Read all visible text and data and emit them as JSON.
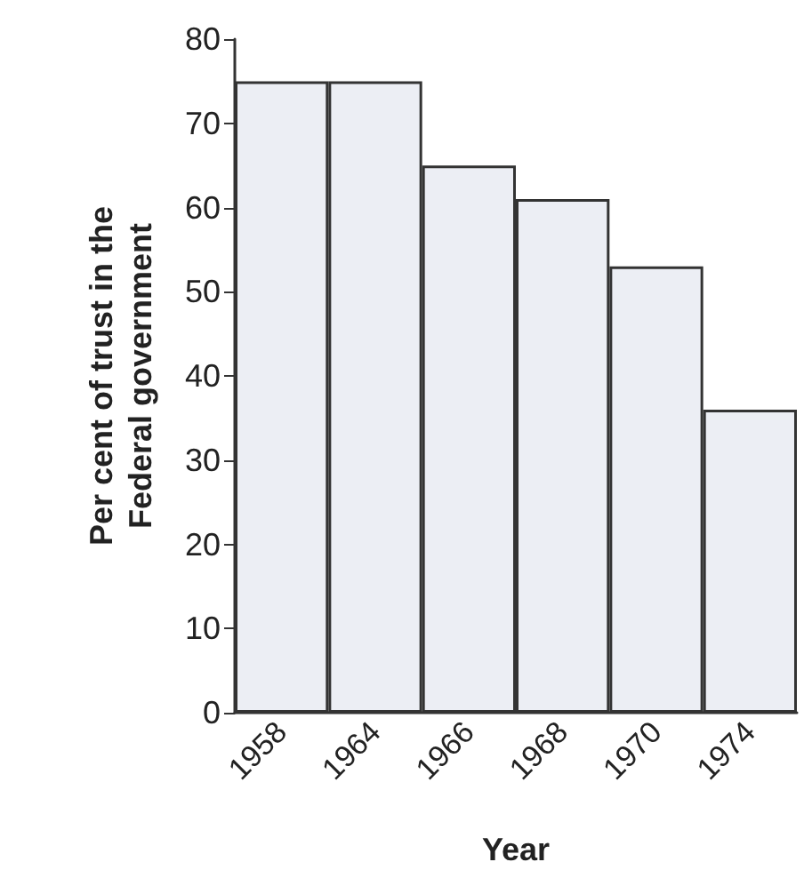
{
  "chart_data": {
    "type": "bar",
    "xlabel": "Year",
    "ylabel": "Per cent of trust in the\nFederal government",
    "categories": [
      "1958",
      "1964",
      "1966",
      "1968",
      "1970",
      "1974"
    ],
    "values": [
      75,
      75,
      65,
      61,
      53,
      36
    ],
    "color": "#eceef4",
    "ylim": [
      0,
      80
    ],
    "yticks": [
      0,
      10,
      20,
      30,
      40,
      50,
      60,
      70,
      80
    ],
    "grid": false
  }
}
